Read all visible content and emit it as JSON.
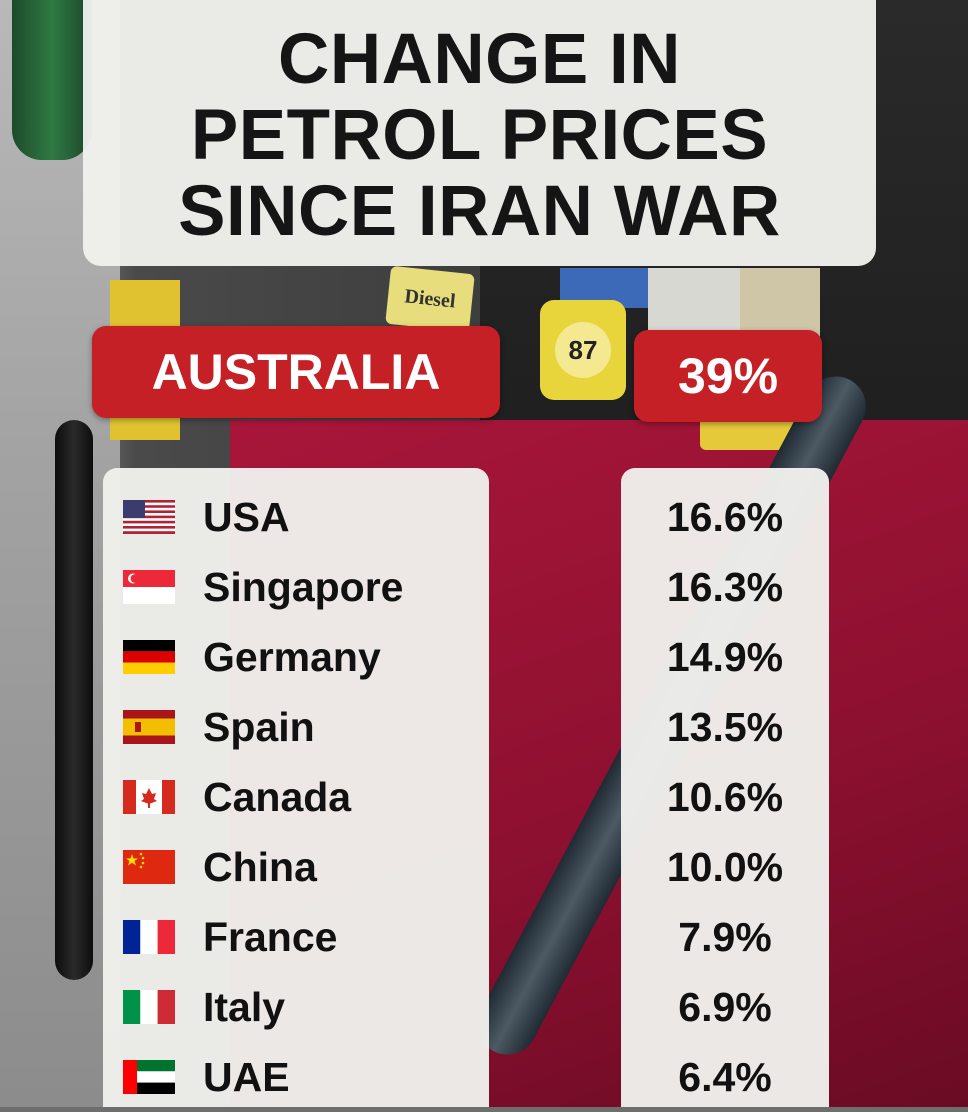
{
  "title": {
    "line1": "CHANGE IN",
    "line2": "PETROL PRICES",
    "line3": "SINCE IRAN WAR"
  },
  "background_labels": {
    "diesel": "Diesel",
    "octane": "87"
  },
  "highlight": {
    "country": "AUSTRALIA",
    "value": "39%",
    "color": "#c42025"
  },
  "countries": [
    {
      "name": "USA",
      "value": "16.6%",
      "flag": "flag-usa-icon"
    },
    {
      "name": "Singapore",
      "value": "16.3%",
      "flag": "flag-singapore-icon"
    },
    {
      "name": "Germany",
      "value": "14.9%",
      "flag": "flag-germany-icon"
    },
    {
      "name": "Spain",
      "value": "13.5%",
      "flag": "flag-spain-icon"
    },
    {
      "name": "Canada",
      "value": "10.6%",
      "flag": "flag-canada-icon"
    },
    {
      "name": "China",
      "value": "10.0%",
      "flag": "flag-china-icon"
    },
    {
      "name": "France",
      "value": "7.9%",
      "flag": "flag-france-icon"
    },
    {
      "name": "Italy",
      "value": "6.9%",
      "flag": "flag-italy-icon"
    },
    {
      "name": "UAE",
      "value": "6.4%",
      "flag": "flag-uae-icon"
    }
  ]
}
